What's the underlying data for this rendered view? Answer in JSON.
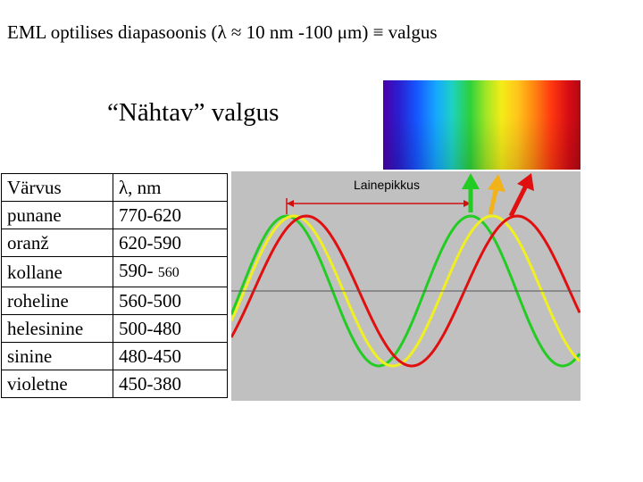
{
  "title": "EML optilises diapasoonis (λ ≈ 10 nm -100 μm)  ≡ valgus",
  "subtitle": "“Nähtav” valgus",
  "diagram": {
    "wavelength_label": "Lainepikkus",
    "waves": [
      {
        "color": "#22cc22"
      },
      {
        "color": "#f0f020"
      },
      {
        "color": "#e01010"
      }
    ]
  },
  "table": {
    "headers": [
      "Värvus",
      "λ, nm"
    ],
    "rows": [
      {
        "color": "punane",
        "range": "770-620"
      },
      {
        "color": "oranž",
        "range": "620-590"
      },
      {
        "color": "kollane",
        "range": "590-",
        "range_extra": "560"
      },
      {
        "color": "roheline",
        "range": "560-500"
      },
      {
        "color": "helesinine",
        "range": "500-480"
      },
      {
        "color": "sinine",
        "range": "480-450"
      },
      {
        "color": "violetne",
        "range": "450-380"
      }
    ]
  }
}
